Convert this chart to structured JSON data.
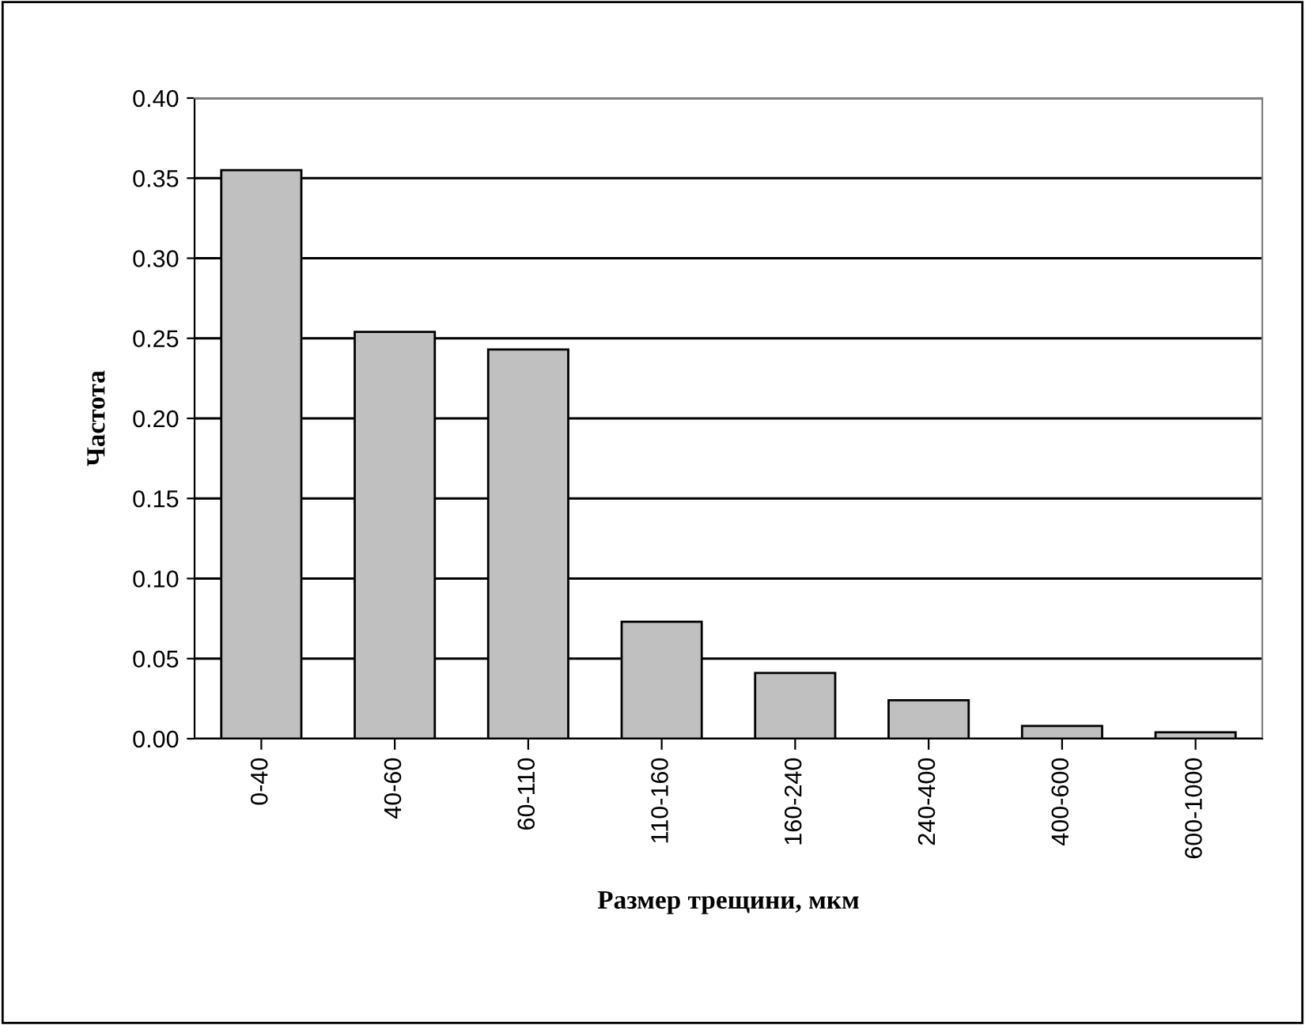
{
  "chart_data": {
    "type": "bar",
    "xlabel": "Размер трещини, мкм",
    "ylabel": "Частота",
    "categories": [
      "0-40",
      "40-60",
      "60-110",
      "110-160",
      "160-240",
      "240-400",
      "400-600",
      "600-1000"
    ],
    "values": [
      0.355,
      0.254,
      0.243,
      0.073,
      0.041,
      0.024,
      0.008,
      0.004
    ],
    "color": "#c0c0c0",
    "ylim": [
      0,
      0.4
    ],
    "yticks": [
      {
        "value": 0,
        "label": "0.00"
      },
      {
        "value": 0.05,
        "label": "0.05"
      },
      {
        "value": 0.1,
        "label": "0.10"
      },
      {
        "value": 0.15,
        "label": "0.15"
      },
      {
        "value": 0.2,
        "label": "0.20"
      },
      {
        "value": 0.25,
        "label": "0.25"
      },
      {
        "value": 0.3,
        "label": "0.30"
      },
      {
        "value": 0.35,
        "label": "0.35"
      },
      {
        "value": 0.4,
        "label": "0.40"
      }
    ],
    "grid": "y",
    "legend": false
  }
}
